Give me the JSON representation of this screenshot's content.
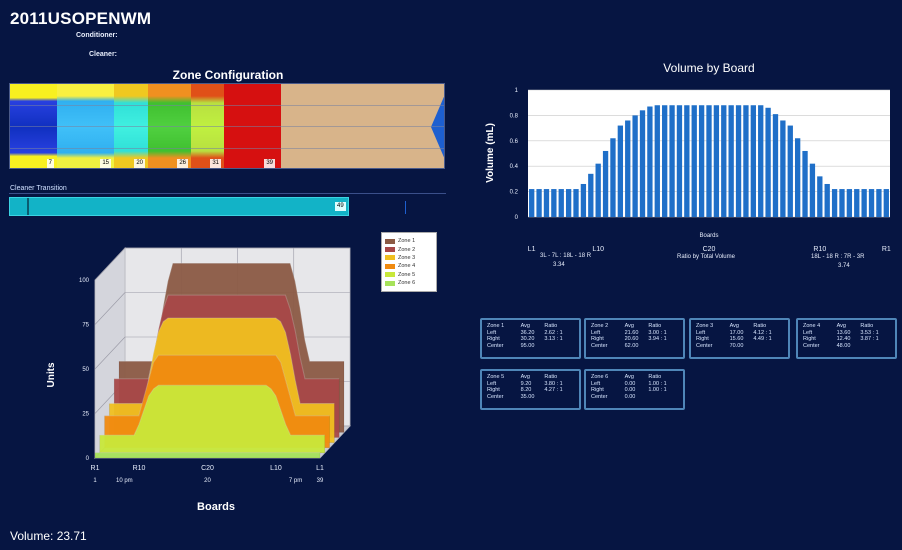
{
  "header": {
    "title": "2011USOPENWM",
    "conditioner_label": "Conditioner:",
    "cleaner_label": "Cleaner:"
  },
  "zone_config": {
    "title": "Zone Configuration",
    "labels": [
      "7",
      "15",
      "20",
      "26",
      "31",
      "39"
    ]
  },
  "cleaner_transition": {
    "label": "Cleaner Transition",
    "value": "49"
  },
  "volume_by_board": {
    "title": "Volume by Board",
    "x_title": "Boards",
    "ratio_left": "3L - 7L : 18L - 18 R",
    "ratio_left_value": "3.34",
    "ratio_mid": "Ratio by Total Volume",
    "ratio_right": "18L - 18 R : 7R - 3R",
    "ratio_right_value": "3.74"
  },
  "units_chart": {
    "legend": [
      "Zone 1",
      "Zone 2",
      "Zone 3",
      "Zone 4",
      "Zone 5",
      "Zone 6"
    ],
    "colors": [
      "#8b5a44",
      "#a84848",
      "#f0c020",
      "#f08a10",
      "#c8e83a",
      "#a6e25a"
    ],
    "bottom_left": "1",
    "bottom_left2": "10 pm",
    "bottom_mid": "20",
    "bottom_right2": "7 pm",
    "bottom_right": "39"
  },
  "zone_stats": [
    {
      "title": "Zone 1",
      "avg_h": "Avg",
      "ratio_h": "Ratio",
      "left": "36.20",
      "left_ratio": "2.62 : 1",
      "right": "30.20",
      "right_ratio": "3.13 : 1",
      "center": "95.00"
    },
    {
      "title": "Zone 2",
      "avg_h": "Avg",
      "ratio_h": "Ratio",
      "left": "21.60",
      "left_ratio": "3.00 : 1",
      "right": "20.60",
      "right_ratio": "3.94 : 1",
      "center": "62.00"
    },
    {
      "title": "Zone 3",
      "avg_h": "Avg",
      "ratio_h": "Ratio",
      "left": "17.00",
      "left_ratio": "4.12 : 1",
      "right": "15.60",
      "right_ratio": "4.49 : 1",
      "center": "70.00"
    },
    {
      "title": "Zone 4",
      "avg_h": "Avg",
      "ratio_h": "Ratio",
      "left": "13.60",
      "left_ratio": "3.53 : 1",
      "right": "12.40",
      "right_ratio": "3.87 : 1",
      "center": "48.00"
    },
    {
      "title": "Zone 5",
      "avg_h": "Avg",
      "ratio_h": "Ratio",
      "left": "9.20",
      "left_ratio": "3.80 : 1",
      "right": "8.20",
      "right_ratio": "4.27 : 1",
      "center": "35.00"
    },
    {
      "title": "Zone 6",
      "avg_h": "Avg",
      "ratio_h": "Ratio",
      "left": "0.00",
      "left_ratio": "1.00 : 1",
      "right": "0.00",
      "right_ratio": "1.00 : 1",
      "center": "0.00"
    }
  ],
  "zone_stat_row_labels": {
    "left": "Left",
    "right": "Right",
    "center": "Center"
  },
  "footer": {
    "volume": "Volume: 23.71"
  },
  "chart_data": [
    {
      "type": "bar",
      "title": "Volume by Board",
      "xlabel": "Boards",
      "ylabel": "Volume (mL)",
      "ylim": [
        0,
        1
      ],
      "yticks": [
        "0",
        "0.2",
        "0.4",
        "0.6",
        "0.8",
        "1"
      ],
      "x_tick_labels": [
        "L1",
        "L10",
        "C20",
        "R10",
        "R1"
      ],
      "grid": true,
      "color": "#1f6fc8",
      "values": [
        0.22,
        0.22,
        0.22,
        0.22,
        0.22,
        0.22,
        0.22,
        0.26,
        0.34,
        0.42,
        0.52,
        0.62,
        0.72,
        0.76,
        0.8,
        0.84,
        0.87,
        0.88,
        0.88,
        0.88,
        0.88,
        0.88,
        0.88,
        0.88,
        0.88,
        0.88,
        0.88,
        0.88,
        0.88,
        0.88,
        0.88,
        0.88,
        0.86,
        0.81,
        0.76,
        0.72,
        0.62,
        0.52,
        0.42,
        0.32,
        0.26,
        0.22,
        0.22,
        0.22,
        0.22,
        0.22,
        0.22,
        0.22,
        0.22
      ]
    },
    {
      "type": "area",
      "title": "",
      "xlabel": "Boards",
      "ylabel": "Units",
      "ylim": [
        0,
        100
      ],
      "yticks": [
        "0",
        "25",
        "50",
        "75",
        "100"
      ],
      "x_tick_labels": [
        "R1",
        "R10",
        "C20",
        "L10",
        "L1"
      ],
      "legend_position": "top-right",
      "series": [
        {
          "name": "Zone 1",
          "values": [
            40,
            40,
            40,
            40,
            40,
            40,
            40,
            40,
            52,
            70,
            85,
            95,
            95,
            95,
            95,
            95,
            95,
            95,
            95,
            95,
            95,
            95,
            95,
            95,
            95,
            95,
            95,
            95,
            95,
            95,
            95,
            95,
            95,
            95,
            95,
            95,
            85,
            70,
            52,
            40,
            40,
            40,
            40,
            40,
            40,
            40,
            40
          ]
        },
        {
          "name": "Zone 2",
          "values": [
            33,
            33,
            33,
            33,
            33,
            33,
            33,
            33,
            45,
            60,
            72,
            80,
            80,
            80,
            80,
            80,
            80,
            80,
            80,
            80,
            80,
            80,
            80,
            80,
            80,
            80,
            80,
            80,
            80,
            80,
            80,
            80,
            80,
            80,
            80,
            80,
            72,
            60,
            45,
            33,
            33,
            33,
            33,
            33,
            33,
            33,
            33
          ]
        },
        {
          "name": "Zone 3",
          "values": [
            22,
            22,
            22,
            22,
            22,
            22,
            22,
            22,
            35,
            50,
            62,
            68,
            70,
            70,
            70,
            70,
            70,
            70,
            70,
            70,
            70,
            70,
            70,
            70,
            70,
            70,
            70,
            70,
            70,
            70,
            70,
            70,
            70,
            70,
            70,
            68,
            62,
            50,
            35,
            22,
            22,
            22,
            22,
            22,
            22,
            22,
            22
          ]
        },
        {
          "name": "Zone 4",
          "values": [
            18,
            18,
            18,
            18,
            18,
            18,
            18,
            18,
            28,
            38,
            48,
            52,
            52,
            52,
            52,
            52,
            52,
            52,
            52,
            52,
            52,
            52,
            52,
            52,
            52,
            52,
            52,
            52,
            52,
            52,
            52,
            52,
            52,
            52,
            52,
            52,
            48,
            38,
            28,
            18,
            18,
            18,
            18,
            18,
            18,
            18,
            18
          ]
        },
        {
          "name": "Zone 5",
          "values": [
            10,
            10,
            10,
            10,
            10,
            10,
            10,
            10,
            16,
            24,
            32,
            36,
            38,
            38,
            38,
            38,
            38,
            38,
            38,
            38,
            38,
            38,
            38,
            38,
            38,
            38,
            38,
            38,
            38,
            38,
            38,
            38,
            38,
            38,
            38,
            36,
            32,
            24,
            16,
            10,
            10,
            10,
            10,
            10,
            10,
            10,
            10
          ]
        },
        {
          "name": "Zone 6",
          "values": [
            3,
            3,
            3,
            3,
            3,
            3,
            3,
            3,
            3,
            3,
            3,
            3,
            3,
            3,
            3,
            3,
            3,
            3,
            3,
            3,
            3,
            3,
            3,
            3,
            3,
            3,
            3,
            3,
            3,
            3,
            3,
            3,
            3,
            3,
            3,
            3,
            3,
            3,
            3,
            3,
            3,
            3,
            3,
            3,
            3,
            3,
            3
          ]
        }
      ]
    }
  ]
}
